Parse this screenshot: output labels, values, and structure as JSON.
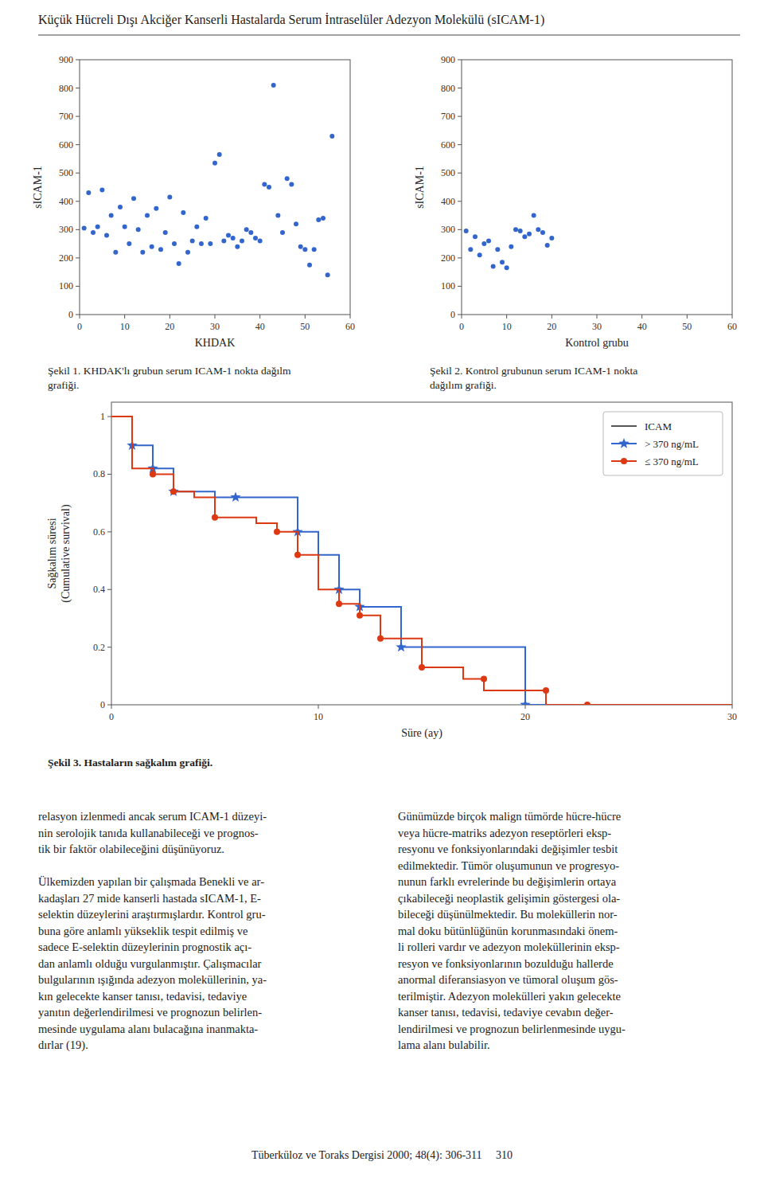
{
  "title": "Küçük Hücreli Dışı Akciğer Kanserli Hastalarda Serum İntraselüler Adezyon Molekülü (sICAM-1)",
  "chart_data": [
    {
      "type": "scatter",
      "xlabel": "KHDAK",
      "ylabel": "sICAM-1",
      "caption": "Şekil 1. KHDAK'lı grubun serum ICAM-1 nokta dağılm\ngrafiği.",
      "xlim": [
        0,
        60
      ],
      "ylim": [
        0,
        900
      ],
      "xticks": [
        0,
        10,
        20,
        30,
        40,
        50,
        60
      ],
      "yticks": [
        0,
        100,
        200,
        300,
        400,
        500,
        600,
        700,
        800,
        900
      ],
      "grid": false,
      "color": "#3366cc",
      "marker": "circle",
      "x": [
        1,
        2,
        3,
        4,
        5,
        6,
        7,
        8,
        9,
        10,
        11,
        12,
        13,
        14,
        15,
        16,
        17,
        18,
        19,
        20,
        21,
        22,
        23,
        24,
        25,
        26,
        27,
        28,
        29,
        30,
        31,
        32,
        33,
        34,
        35,
        36,
        37,
        38,
        39,
        40,
        41,
        42,
        43,
        44,
        45,
        46,
        47,
        48,
        49,
        50,
        51,
        52,
        53,
        54,
        55,
        56
      ],
      "values": [
        305,
        430,
        290,
        310,
        440,
        280,
        350,
        220,
        380,
        310,
        250,
        410,
        300,
        220,
        350,
        240,
        375,
        230,
        290,
        415,
        250,
        180,
        360,
        220,
        260,
        310,
        250,
        340,
        250,
        535,
        565,
        260,
        280,
        270,
        240,
        260,
        300,
        290,
        270,
        260,
        460,
        450,
        810,
        350,
        290,
        480,
        460,
        320,
        240,
        230,
        175,
        230,
        335,
        340,
        140,
        630
      ]
    },
    {
      "type": "scatter",
      "xlabel": "Kontrol grubu",
      "ylabel": "sICAM-1",
      "caption": "Şekil 2. Kontrol grubunun serum ICAM-1 nokta\ndağılım grafiği.",
      "xlim": [
        0,
        60
      ],
      "ylim": [
        0,
        900
      ],
      "xticks": [
        0,
        10,
        20,
        30,
        40,
        50,
        60
      ],
      "yticks": [
        0,
        100,
        200,
        300,
        400,
        500,
        600,
        700,
        800,
        900
      ],
      "grid": false,
      "color": "#3366cc",
      "marker": "circle",
      "x": [
        1,
        2,
        3,
        4,
        5,
        6,
        7,
        8,
        9,
        10,
        11,
        12,
        13,
        14,
        15,
        16,
        17,
        18,
        19,
        20
      ],
      "values": [
        295,
        230,
        275,
        210,
        250,
        260,
        170,
        230,
        185,
        165,
        240,
        300,
        295,
        275,
        285,
        350,
        300,
        290,
        245,
        270
      ]
    },
    {
      "type": "step",
      "xlabel": "Süre (ay)",
      "ylabel": "Sağkalım süresi\n(Cumulative survival)",
      "caption": "Şekil 3. Hastaların sağkalım grafiği.",
      "xlim": [
        0,
        30
      ],
      "ylim": [
        0,
        1.05
      ],
      "xticks": [
        0,
        10,
        20,
        30
      ],
      "yticks": [
        0,
        0.2,
        0.4,
        0.6,
        0.8,
        1.0
      ],
      "grid": false,
      "legend": "upper right",
      "line_label": "ICAM",
      "series": [
        {
          "name": "> 370 ng/mL",
          "color": "#3366cc",
          "marker": "star",
          "x": [
            0,
            1,
            1,
            2,
            2,
            3,
            3,
            5,
            5,
            6,
            6,
            8,
            8,
            9,
            9,
            10,
            10,
            11,
            11,
            12,
            12,
            14,
            14,
            20,
            20,
            24,
            24,
            30
          ],
          "values": [
            1.0,
            1.0,
            0.9,
            0.9,
            0.82,
            0.82,
            0.74,
            0.74,
            0.72,
            0.72,
            0.72,
            0.72,
            0.72,
            0.72,
            0.6,
            0.6,
            0.52,
            0.52,
            0.4,
            0.4,
            0.34,
            0.34,
            0.2,
            0.2,
            0.0,
            0.0,
            0.0,
            0.0
          ],
          "marker_x": [
            1,
            2,
            3,
            6,
            9,
            11,
            12,
            14,
            20
          ],
          "marker_values": [
            0.9,
            0.82,
            0.74,
            0.72,
            0.6,
            0.4,
            0.34,
            0.2,
            0.0
          ]
        },
        {
          "name": "≤ 370 ng/mL",
          "color": "#dc3912",
          "marker": "circle",
          "x": [
            0,
            1,
            1,
            2,
            2,
            3,
            3,
            4,
            4,
            5,
            5,
            7,
            7,
            8,
            8,
            9,
            9,
            10,
            10,
            11,
            11,
            12,
            12,
            13,
            13,
            15,
            15,
            17,
            17,
            18,
            18,
            19,
            19,
            21,
            21,
            23,
            23,
            30
          ],
          "values": [
            1.0,
            1.0,
            0.82,
            0.82,
            0.8,
            0.8,
            0.74,
            0.74,
            0.72,
            0.72,
            0.65,
            0.65,
            0.63,
            0.63,
            0.6,
            0.6,
            0.52,
            0.52,
            0.4,
            0.4,
            0.35,
            0.35,
            0.31,
            0.31,
            0.23,
            0.23,
            0.13,
            0.13,
            0.09,
            0.09,
            0.05,
            0.05,
            0.05,
            0.05,
            0.0,
            0.0,
            0.0,
            0.0
          ],
          "marker_x": [
            2,
            3,
            5,
            8,
            9,
            11,
            12,
            13,
            15,
            18,
            21,
            23
          ],
          "marker_values": [
            0.8,
            0.74,
            0.65,
            0.6,
            0.52,
            0.35,
            0.31,
            0.23,
            0.13,
            0.09,
            0.05,
            0.0
          ]
        }
      ]
    }
  ],
  "body_left": "relasyon izlenmedi ancak serum ICAM-1 düzeyi-\nnin serolojik tanıda kullanabileceği ve prognos-\ntik bir faktör olabileceğini düşünüyoruz.\n\nÜlkemizden yapılan bir çalışmada Benekli ve ar-\nkadaşları 27 mide kanserli hastada sICAM-1, E-\nselektin düzeylerini araştırmışlardır. Kontrol gru-\nbuna göre anlamlı yükseklik tespit edilmiş ve\nsadece E-selektin düzeylerinin prognostik açı-\ndan anlamlı olduğu vurgulanmıştır. Çalışmacılar\nbulgularının ışığında adezyon moleküllerinin, ya-\nkın gelecekte kanser tanısı, tedavisi, tedaviye\nyanıtın değerlendirilmesi ve prognozun belirlen-\nmesinde uygulama alanı bulacağına inanmakta-\ndırlar (19).",
  "body_right": "Günümüzde birçok malign tümörde hücre-hücre\nveya hücre-matriks adezyon reseptörleri eksp-\nresyonu ve fonksiyonlarındaki değişimler tesbit\nedilmektedir. Tümör oluşumunun ve progresyo-\nnunun farklı evrelerinde bu değişimlerin ortaya\nçıkabileceği neoplastik gelişimin göstergesi ola-\nbileceği düşünülmektedir. Bu moleküllerin nor-\nmal doku bütünlüğünün korunmasındaki önem-\nli rolleri vardır ve adezyon moleküllerinin eksp-\nresyon ve fonksiyonlarının bozulduğu hallerde\nanormal diferansiasyon ve tümoral oluşum gös-\nterilmiştir. Adezyon molekülleri yakın gelecekte\nkanser tanısı, tedavisi, tedaviye cevabın değer-\nlendirilmesi ve prognozun belirlenmesinde uygu-\nlama alanı bulabilir.",
  "footer": "Tüberküloz ve Toraks Dergisi 2000; 48(4): 306-311     310"
}
